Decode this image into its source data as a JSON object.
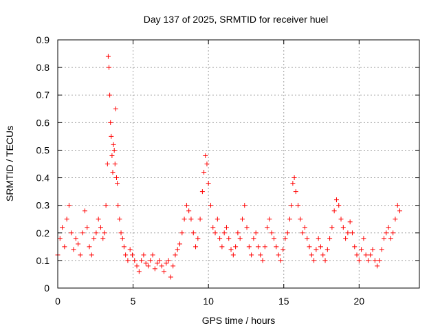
{
  "chart_data": {
    "type": "scatter",
    "title": "Day 137 of 2025, SRMTID for receiver huel",
    "xlabel": "GPS time / hours",
    "ylabel": "SRMTID / TECUs",
    "xlim": [
      0,
      24
    ],
    "ylim": [
      0,
      0.9
    ],
    "x_ticks": [
      0,
      5,
      10,
      15,
      20
    ],
    "y_ticks": [
      0,
      0.1,
      0.2,
      0.3,
      0.4,
      0.5,
      0.6,
      0.7,
      0.8,
      0.9
    ],
    "grid": true,
    "marker": "+",
    "color": "#ff0000",
    "series": [
      {
        "name": "SRMTID",
        "x": [
          0.0,
          0.15,
          0.3,
          0.45,
          0.6,
          0.75,
          0.9,
          1.05,
          1.2,
          1.35,
          1.5,
          1.65,
          1.8,
          1.95,
          2.1,
          2.25,
          2.4,
          2.55,
          2.7,
          2.85,
          3.0,
          3.1,
          3.2,
          3.3,
          3.35,
          3.4,
          3.45,
          3.5,
          3.55,
          3.6,
          3.65,
          3.7,
          3.75,
          3.8,
          3.85,
          3.9,
          3.95,
          4.0,
          4.1,
          4.2,
          4.3,
          4.4,
          4.5,
          4.65,
          4.8,
          4.95,
          5.1,
          5.25,
          5.4,
          5.55,
          5.7,
          5.85,
          6.0,
          6.15,
          6.3,
          6.45,
          6.6,
          6.75,
          6.9,
          7.05,
          7.2,
          7.35,
          7.5,
          7.65,
          7.8,
          7.95,
          8.1,
          8.25,
          8.4,
          8.55,
          8.7,
          8.85,
          9.0,
          9.15,
          9.3,
          9.45,
          9.6,
          9.7,
          9.8,
          9.9,
          10.0,
          10.15,
          10.3,
          10.45,
          10.6,
          10.75,
          10.9,
          11.05,
          11.2,
          11.35,
          11.5,
          11.65,
          11.8,
          11.95,
          12.1,
          12.25,
          12.4,
          12.55,
          12.7,
          12.85,
          13.0,
          13.15,
          13.3,
          13.45,
          13.6,
          13.75,
          13.9,
          14.05,
          14.2,
          14.35,
          14.5,
          14.65,
          14.8,
          14.95,
          15.1,
          15.25,
          15.4,
          15.5,
          15.6,
          15.7,
          15.8,
          15.95,
          16.1,
          16.25,
          16.4,
          16.55,
          16.7,
          16.85,
          17.0,
          17.15,
          17.3,
          17.45,
          17.6,
          17.75,
          17.9,
          18.05,
          18.2,
          18.35,
          18.5,
          18.65,
          18.8,
          18.95,
          19.1,
          19.25,
          19.4,
          19.55,
          19.7,
          19.85,
          20.0,
          20.15,
          20.3,
          20.45,
          20.6,
          20.75,
          20.9,
          21.05,
          21.2,
          21.35,
          21.5,
          21.65,
          21.8,
          21.95,
          22.1,
          22.25,
          22.4,
          22.55,
          22.7
        ],
        "y": [
          0.12,
          0.18,
          0.22,
          0.15,
          0.25,
          0.3,
          0.2,
          0.14,
          0.18,
          0.16,
          0.12,
          0.2,
          0.28,
          0.22,
          0.15,
          0.12,
          0.18,
          0.2,
          0.25,
          0.22,
          0.18,
          0.2,
          0.3,
          0.45,
          0.84,
          0.8,
          0.7,
          0.6,
          0.55,
          0.48,
          0.42,
          0.52,
          0.5,
          0.45,
          0.65,
          0.4,
          0.38,
          0.3,
          0.25,
          0.2,
          0.18,
          0.15,
          0.12,
          0.1,
          0.14,
          0.12,
          0.1,
          0.08,
          0.06,
          0.1,
          0.12,
          0.09,
          0.08,
          0.1,
          0.12,
          0.07,
          0.09,
          0.1,
          0.08,
          0.06,
          0.09,
          0.1,
          0.04,
          0.08,
          0.12,
          0.14,
          0.16,
          0.2,
          0.25,
          0.3,
          0.28,
          0.25,
          0.2,
          0.15,
          0.18,
          0.25,
          0.35,
          0.42,
          0.48,
          0.45,
          0.38,
          0.3,
          0.22,
          0.2,
          0.25,
          0.18,
          0.15,
          0.2,
          0.22,
          0.18,
          0.14,
          0.12,
          0.15,
          0.2,
          0.18,
          0.25,
          0.3,
          0.22,
          0.15,
          0.12,
          0.18,
          0.2,
          0.15,
          0.12,
          0.1,
          0.15,
          0.22,
          0.25,
          0.2,
          0.18,
          0.15,
          0.12,
          0.1,
          0.14,
          0.18,
          0.2,
          0.25,
          0.3,
          0.38,
          0.4,
          0.35,
          0.3,
          0.25,
          0.2,
          0.22,
          0.18,
          0.15,
          0.12,
          0.1,
          0.14,
          0.18,
          0.15,
          0.12,
          0.1,
          0.14,
          0.18,
          0.22,
          0.28,
          0.32,
          0.3,
          0.25,
          0.22,
          0.18,
          0.2,
          0.24,
          0.2,
          0.15,
          0.12,
          0.1,
          0.14,
          0.18,
          0.12,
          0.1,
          0.12,
          0.14,
          0.1,
          0.08,
          0.1,
          0.14,
          0.18,
          0.2,
          0.22,
          0.18,
          0.2,
          0.25,
          0.3,
          0.28
        ]
      }
    ]
  }
}
